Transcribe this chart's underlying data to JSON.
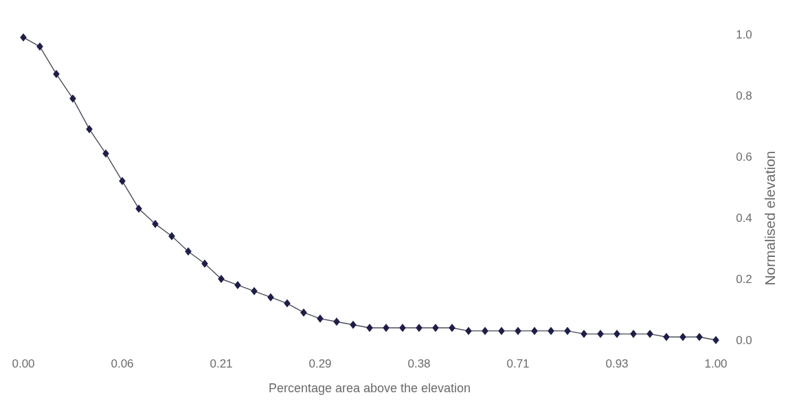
{
  "chart_data": {
    "type": "line",
    "xlabel": "Percentage area above the elevation",
    "ylabel": "Normalised elevation",
    "categories": [
      "0.00",
      null,
      null,
      null,
      null,
      null,
      "0.06",
      null,
      null,
      null,
      null,
      null,
      "0.21",
      null,
      null,
      null,
      null,
      null,
      "0.29",
      null,
      null,
      null,
      null,
      null,
      "0.38",
      null,
      null,
      null,
      null,
      null,
      "0.71",
      null,
      null,
      null,
      null,
      null,
      "0.93",
      null,
      null,
      null,
      null,
      null,
      "1.00"
    ],
    "series": [
      {
        "color": "#1e1e48",
        "values": [
          0.99,
          0.96,
          0.87,
          0.79,
          0.69,
          0.61,
          0.52,
          0.43,
          0.38,
          0.34,
          0.29,
          0.25,
          0.2,
          0.18,
          0.16,
          0.14,
          0.12,
          0.09,
          0.07,
          0.06,
          0.05,
          0.04,
          0.04,
          0.04,
          0.04,
          0.04,
          0.04,
          0.03,
          0.03,
          0.03,
          0.03,
          0.03,
          0.03,
          0.03,
          0.02,
          0.02,
          0.02,
          0.02,
          0.02,
          0.01,
          0.01,
          0.01,
          0.0
        ]
      }
    ],
    "ylim": [
      0,
      1
    ],
    "yticks": [
      {
        "value": 0,
        "label": "0.0"
      },
      {
        "value": 0.2,
        "label": "0.2"
      },
      {
        "value": 0.4,
        "label": "0.4"
      },
      {
        "value": 0.6,
        "label": "0.6"
      },
      {
        "value": 0.8,
        "label": "0.8"
      },
      {
        "value": 1,
        "label": "1.0"
      }
    ],
    "marker": "diamond",
    "line_style": "solid"
  }
}
